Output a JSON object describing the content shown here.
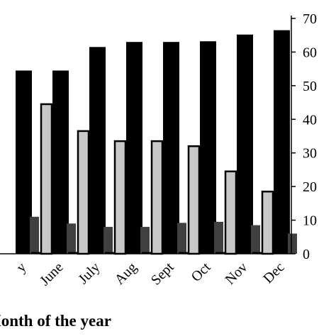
{
  "chart_data": {
    "type": "bar",
    "categories": [
      "May",
      "June",
      "July",
      "Aug",
      "Sept",
      "Oct",
      "Nov",
      "Dec"
    ],
    "visible_category_labels": [
      "y",
      "June",
      "July",
      "Aug",
      "Sept",
      "Oct",
      "Nov",
      "Dec"
    ],
    "series": [
      {
        "values": [
          null,
          0,
          0,
          0,
          0,
          0,
          0,
          0
        ],
        "color": "#000000"
      },
      {
        "values": [
          null,
          44.5,
          36.5,
          33.5,
          33.5,
          32,
          24.5,
          18.5
        ],
        "color": "#c8c8c8"
      },
      {
        "values": [
          54.5,
          54.5,
          61.5,
          63,
          63,
          63.2,
          65.2,
          66.5
        ],
        "color": "#000000"
      },
      {
        "values": [
          11,
          9,
          8,
          8,
          9.2,
          9.5,
          8.5,
          6
        ],
        "color": "#404040"
      }
    ],
    "y_ticks": [
      "0",
      "10",
      "20",
      "30",
      "40",
      "50",
      "60",
      "70"
    ],
    "ylim": [
      0,
      70
    ],
    "y_axis_side": "right",
    "xlabel": "Month of the year",
    "xlabel_visible": "Month of the year",
    "grid": false,
    "legend": "none"
  }
}
